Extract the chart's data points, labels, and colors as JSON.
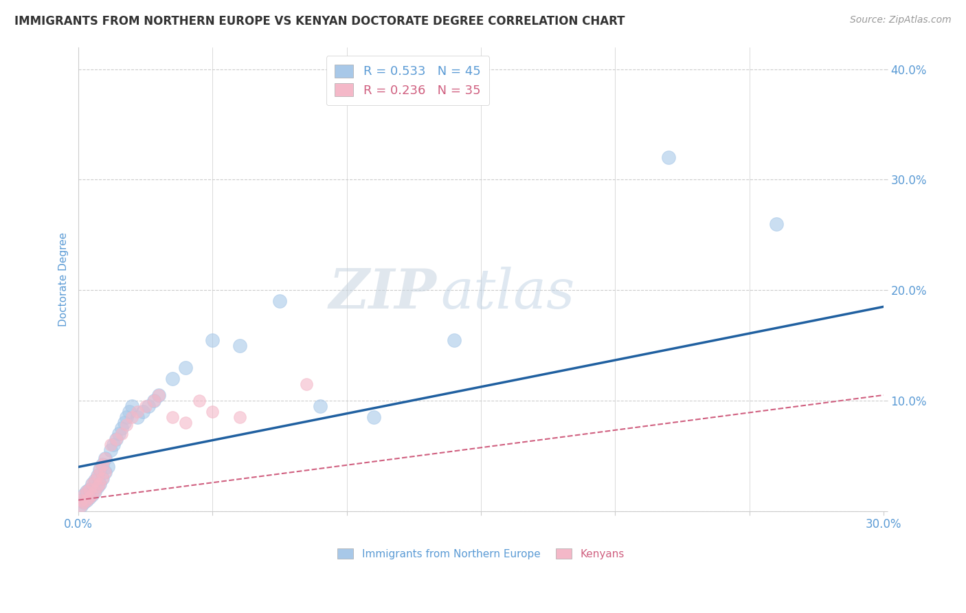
{
  "title": "IMMIGRANTS FROM NORTHERN EUROPE VS KENYAN DOCTORATE DEGREE CORRELATION CHART",
  "source": "Source: ZipAtlas.com",
  "ylabel": "Doctorate Degree",
  "xlim": [
    0.0,
    0.3
  ],
  "ylim": [
    0.0,
    0.42
  ],
  "xticks": [
    0.0,
    0.05,
    0.1,
    0.15,
    0.2,
    0.25,
    0.3
  ],
  "xtick_labels": [
    "0.0%",
    "",
    "",
    "",
    "",
    "",
    "30.0%"
  ],
  "yticks": [
    0.0,
    0.1,
    0.2,
    0.3,
    0.4
  ],
  "ytick_labels": [
    "",
    "10.0%",
    "20.0%",
    "30.0%",
    "40.0%"
  ],
  "legend_blue_label": "R = 0.533   N = 45",
  "legend_pink_label": "R = 0.236   N = 35",
  "legend_bottom_blue": "Immigrants from Northern Europe",
  "legend_bottom_pink": "Kenyans",
  "blue_color": "#A8C8E8",
  "pink_color": "#F4B8C8",
  "blue_line_color": "#2060A0",
  "pink_line_color": "#D06080",
  "watermark_zip": "ZIP",
  "watermark_atlas": "atlas",
  "blue_scatter_x": [
    0.001,
    0.001,
    0.002,
    0.002,
    0.003,
    0.003,
    0.004,
    0.004,
    0.005,
    0.005,
    0.006,
    0.006,
    0.007,
    0.007,
    0.008,
    0.008,
    0.009,
    0.009,
    0.01,
    0.01,
    0.011,
    0.012,
    0.013,
    0.014,
    0.015,
    0.016,
    0.017,
    0.018,
    0.019,
    0.02,
    0.022,
    0.024,
    0.026,
    0.028,
    0.03,
    0.035,
    0.04,
    0.05,
    0.06,
    0.075,
    0.09,
    0.11,
    0.14,
    0.22,
    0.26
  ],
  "blue_scatter_y": [
    0.005,
    0.01,
    0.008,
    0.015,
    0.01,
    0.018,
    0.012,
    0.02,
    0.015,
    0.025,
    0.018,
    0.028,
    0.022,
    0.032,
    0.025,
    0.038,
    0.03,
    0.042,
    0.035,
    0.048,
    0.04,
    0.055,
    0.06,
    0.065,
    0.07,
    0.075,
    0.08,
    0.085,
    0.09,
    0.095,
    0.085,
    0.09,
    0.095,
    0.1,
    0.105,
    0.12,
    0.13,
    0.155,
    0.15,
    0.19,
    0.095,
    0.085,
    0.155,
    0.32,
    0.26
  ],
  "pink_scatter_x": [
    0.001,
    0.001,
    0.002,
    0.002,
    0.003,
    0.003,
    0.004,
    0.004,
    0.005,
    0.005,
    0.006,
    0.006,
    0.007,
    0.007,
    0.008,
    0.008,
    0.009,
    0.009,
    0.01,
    0.01,
    0.012,
    0.014,
    0.016,
    0.018,
    0.02,
    0.022,
    0.025,
    0.028,
    0.03,
    0.035,
    0.04,
    0.045,
    0.05,
    0.06,
    0.085
  ],
  "pink_scatter_y": [
    0.005,
    0.01,
    0.008,
    0.015,
    0.01,
    0.018,
    0.012,
    0.02,
    0.015,
    0.025,
    0.018,
    0.028,
    0.022,
    0.032,
    0.025,
    0.038,
    0.03,
    0.042,
    0.035,
    0.048,
    0.06,
    0.065,
    0.07,
    0.078,
    0.085,
    0.09,
    0.095,
    0.1,
    0.105,
    0.085,
    0.08,
    0.1,
    0.09,
    0.085,
    0.115
  ],
  "blue_line_x": [
    0.0,
    0.3
  ],
  "blue_line_y": [
    0.04,
    0.185
  ],
  "pink_line_x": [
    0.0,
    0.3
  ],
  "pink_line_y": [
    0.01,
    0.105
  ],
  "background_color": "#FFFFFF",
  "grid_color": "#CCCCCC",
  "title_color": "#333333",
  "axis_label_color": "#5B9BD5",
  "tick_color": "#5B9BD5"
}
